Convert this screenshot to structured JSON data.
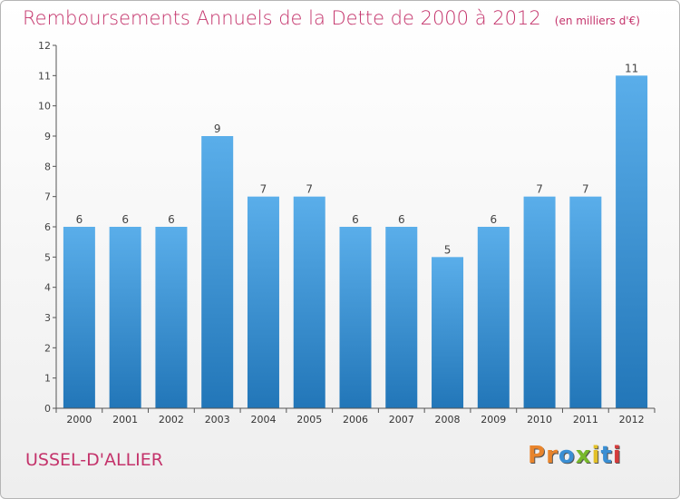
{
  "title": "Remboursements Annuels de la Dette de 2000 à 2012",
  "unit_note": "(en milliers d'€)",
  "location": "USSEL-D'ALLIER",
  "logo": {
    "text": "Proxiti",
    "letters": [
      "P",
      "r",
      "o",
      "x",
      "i",
      "t",
      "i"
    ],
    "colors": [
      "#e8842c",
      "#e8842c",
      "#3a8fd4",
      "#77b82b",
      "#e2c029",
      "#3a8fd4",
      "#d43c3c"
    ]
  },
  "colors": {
    "bar_top": "#5aaeea",
    "bar_bottom": "#2276b8",
    "text": "#c4336b",
    "axis": "#555555",
    "grid": "#dddddd"
  },
  "chart_data": {
    "type": "bar",
    "categories": [
      "2000",
      "2001",
      "2002",
      "2003",
      "2004",
      "2005",
      "2006",
      "2007",
      "2008",
      "2009",
      "2010",
      "2011",
      "2012"
    ],
    "values": [
      6,
      6,
      6,
      9,
      7,
      7,
      6,
      6,
      5,
      6,
      7,
      7,
      11
    ],
    "title": "Remboursements Annuels de la Dette de 2000 à 2012",
    "xlabel": "",
    "ylabel": "",
    "ylim": [
      0,
      12
    ],
    "yticks": [
      0,
      1,
      2,
      3,
      4,
      5,
      6,
      7,
      8,
      9,
      10,
      11,
      12
    ],
    "grid": false,
    "data_labels": true
  }
}
